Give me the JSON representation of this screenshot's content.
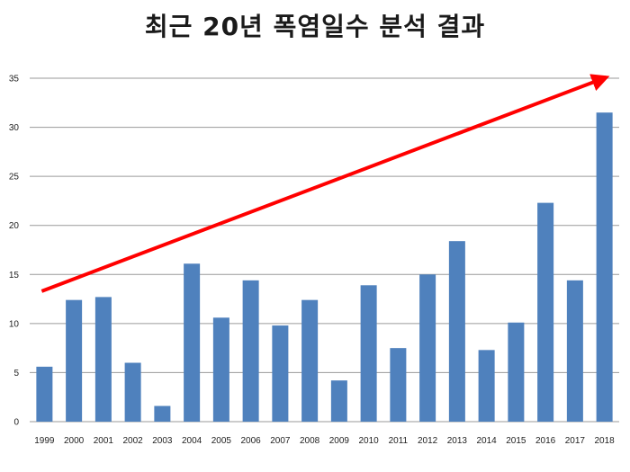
{
  "chart_data": {
    "type": "bar",
    "title": "최근 20년 폭염일수 분석 결과",
    "xlabel": "",
    "ylabel": "",
    "ylim": [
      0,
      35
    ],
    "yticks": [
      0,
      5,
      10,
      15,
      20,
      25,
      30,
      35
    ],
    "grid": true,
    "legend": "none",
    "categories": [
      "1999",
      "2000",
      "2001",
      "2002",
      "2003",
      "2004",
      "2005",
      "2006",
      "2007",
      "2008",
      "2009",
      "2010",
      "2011",
      "2012",
      "2013",
      "2014",
      "2015",
      "2016",
      "2017",
      "2018"
    ],
    "values": [
      5.6,
      12.4,
      12.7,
      6.0,
      1.6,
      16.1,
      10.6,
      14.4,
      9.8,
      12.4,
      4.2,
      13.9,
      7.5,
      15.0,
      18.4,
      7.3,
      10.1,
      22.3,
      14.4,
      31.5
    ],
    "bar_color": "#4F81BD",
    "trend_arrow": {
      "from": [
        1999,
        13.3
      ],
      "to": [
        2018,
        35
      ],
      "color": "#FF0000"
    }
  }
}
